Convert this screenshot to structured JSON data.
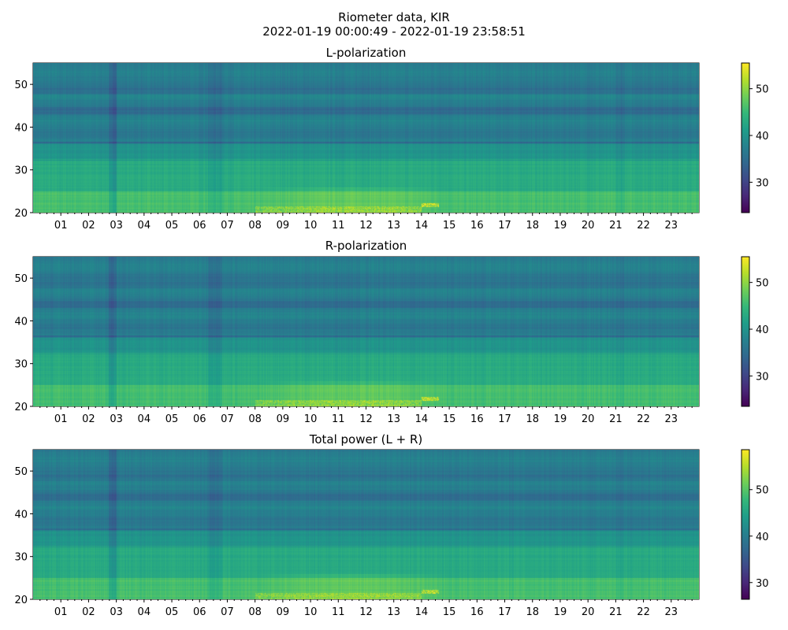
{
  "title_line1": "Riometer data, KIR",
  "title_line2": "2022-01-19 00:00:49 - 2022-01-19 23:58:51",
  "colors": {
    "colormap": "viridis",
    "axis": "#000000",
    "background": "#ffffff"
  },
  "chart_data": [
    {
      "type": "heatmap",
      "title": "L-polarization",
      "xlabel": "",
      "ylabel": "",
      "xlim_hours": [
        0,
        24
      ],
      "ylim": [
        20,
        55
      ],
      "x_tick_labels": [
        "01",
        "02",
        "03",
        "04",
        "05",
        "06",
        "07",
        "08",
        "09",
        "10",
        "11",
        "12",
        "13",
        "14",
        "15",
        "16",
        "17",
        "18",
        "19",
        "20",
        "21",
        "22",
        "23"
      ],
      "y_ticks": [
        20,
        30,
        40,
        50
      ],
      "colorbar": {
        "range": [
          23.5,
          55.5
        ],
        "ticks": [
          30,
          40,
          50
        ]
      },
      "features": {
        "low_band_level": 46,
        "mid_band_level": 43,
        "high_band_level": 37,
        "bright_line_at": 32.5,
        "dark_line_at": 36.5,
        "dark_time_hours": [
          2.7,
          3.0
        ],
        "bright_interval_hours": [
          8,
          15
        ]
      }
    },
    {
      "type": "heatmap",
      "title": "R-polarization",
      "xlabel": "",
      "ylabel": "",
      "xlim_hours": [
        0,
        24
      ],
      "ylim": [
        20,
        55
      ],
      "x_tick_labels": [
        "01",
        "02",
        "03",
        "04",
        "05",
        "06",
        "07",
        "08",
        "09",
        "10",
        "11",
        "12",
        "13",
        "14",
        "15",
        "16",
        "17",
        "18",
        "19",
        "20",
        "21",
        "22",
        "23"
      ],
      "y_ticks": [
        20,
        30,
        40,
        50
      ],
      "colorbar": {
        "range": [
          23.5,
          55.5
        ],
        "ticks": [
          30,
          40,
          50
        ]
      },
      "features": {
        "low_band_level": 46,
        "mid_band_level": 43,
        "high_band_level": 37,
        "bright_line_at": 32.5,
        "dark_line_at": 36.5,
        "dark_time_hours": [
          2.7,
          3.0
        ],
        "bright_interval_hours": [
          8,
          15
        ]
      }
    },
    {
      "type": "heatmap",
      "title": "Total power (L + R)",
      "xlabel": "",
      "ylabel": "",
      "xlim_hours": [
        0,
        24
      ],
      "ylim": [
        20,
        55
      ],
      "x_tick_labels": [
        "01",
        "02",
        "03",
        "04",
        "05",
        "06",
        "07",
        "08",
        "09",
        "10",
        "11",
        "12",
        "13",
        "14",
        "15",
        "16",
        "17",
        "18",
        "19",
        "20",
        "21",
        "22",
        "23"
      ],
      "y_ticks": [
        20,
        30,
        40,
        50
      ],
      "colorbar": {
        "range": [
          26.4,
          58.6
        ],
        "ticks": [
          30,
          40,
          50
        ]
      },
      "features": {
        "low_band_level": 49,
        "mid_band_level": 46,
        "high_band_level": 40,
        "bright_line_at": 32.5,
        "dark_line_at": 36.5,
        "dark_time_hours": [
          2.7,
          3.0
        ],
        "bright_interval_hours": [
          8,
          15
        ]
      }
    }
  ]
}
